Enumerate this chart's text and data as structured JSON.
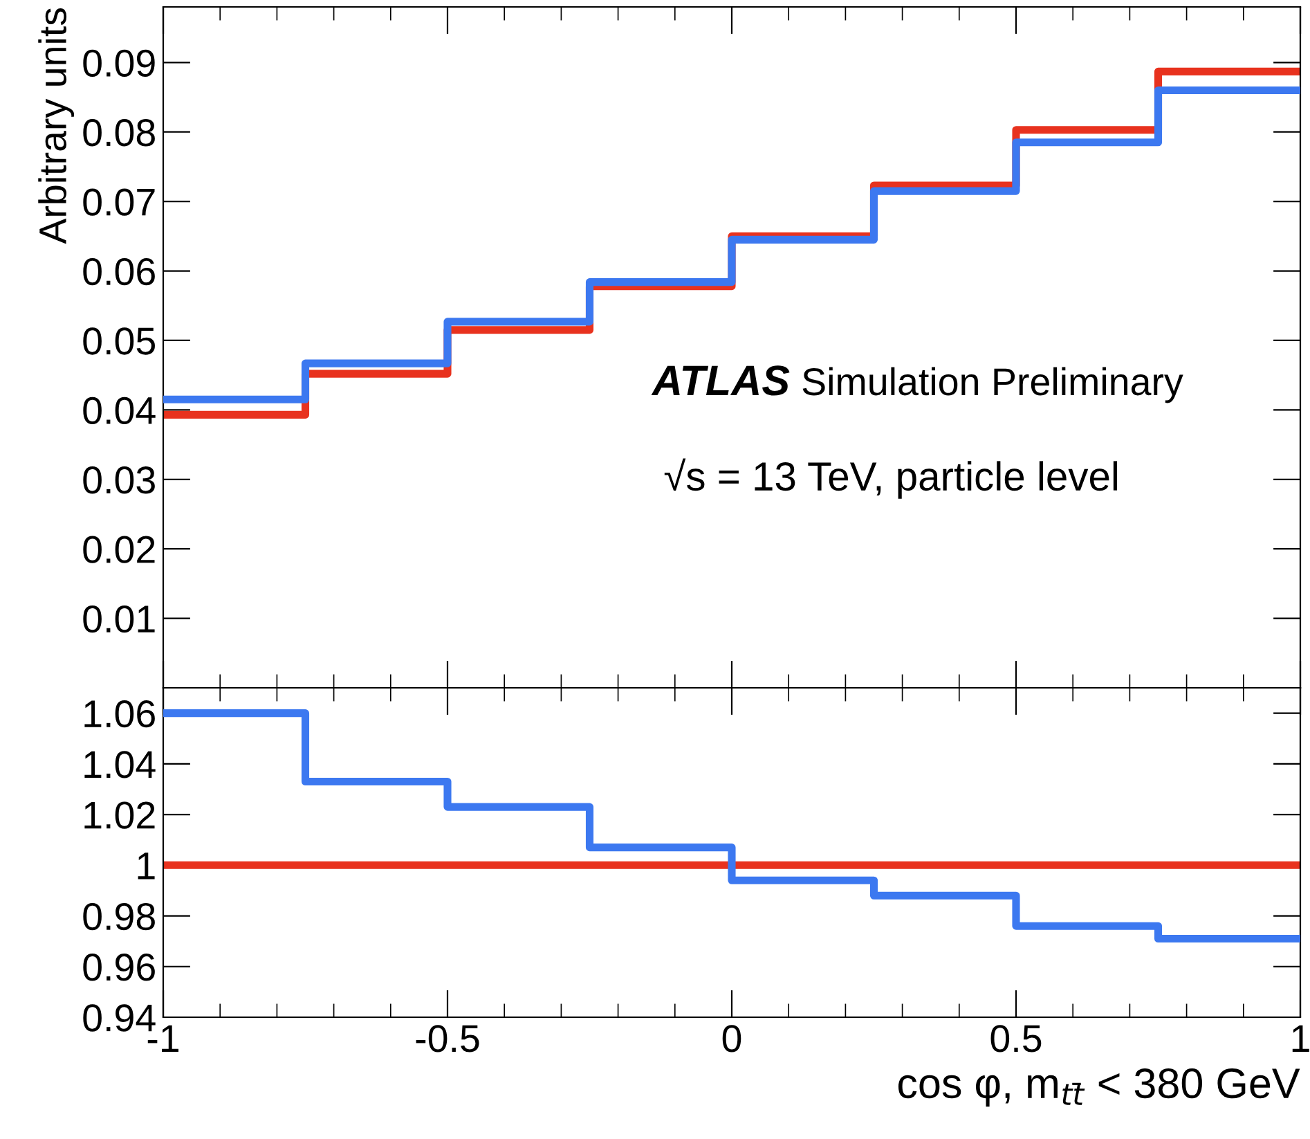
{
  "chart_data": [
    {
      "type": "step",
      "ylabel": "Arbitrary units",
      "x": [
        -1,
        -0.75,
        -0.5,
        -0.25,
        0,
        0.25,
        0.5,
        0.75,
        1
      ],
      "series": [
        {
          "color": "#e8321e",
          "values": [
            0.0393,
            0.0452,
            0.0515,
            0.0578,
            0.065,
            0.0723,
            0.0803,
            0.0887,
            0.0887
          ]
        },
        {
          "color": "#3c78f0",
          "values": [
            0.0415,
            0.0467,
            0.0527,
            0.0584,
            0.0645,
            0.0715,
            0.0785,
            0.086,
            0.086
          ]
        }
      ],
      "xlim": [
        -1,
        1
      ],
      "xticks": [
        {
          "value": -1,
          "label": null
        },
        {
          "value": -0.5,
          "label": null
        },
        {
          "value": 0,
          "label": null
        },
        {
          "value": 0.5,
          "label": null
        },
        {
          "value": 1,
          "label": null
        }
      ],
      "ylim": [
        0,
        0.098
      ],
      "yticks": [
        0.01,
        0.02,
        0.03,
        0.04,
        0.05,
        0.06,
        0.07,
        0.08,
        0.09
      ],
      "tick_labels": "y",
      "annotations": [
        "ATLAS Simulation Preliminary",
        "√s = 13 TeV, particle level"
      ]
    },
    {
      "type": "step",
      "xlabel": "cos φ, m$_{tt̄}$ < 380 GeV",
      "x": [
        -1,
        -0.75,
        -0.5,
        -0.25,
        0,
        0.25,
        0.5,
        0.75,
        1
      ],
      "series": [
        {
          "color": "#e8321e",
          "values": [
            1,
            1,
            1,
            1,
            1,
            1,
            1,
            1,
            1
          ]
        },
        {
          "color": "#3c78f0",
          "values": [
            1.06,
            1.033,
            1.023,
            1.007,
            0.994,
            0.988,
            0.976,
            0.971,
            0.971
          ]
        }
      ],
      "xlim": [
        -1,
        1
      ],
      "xticks": [
        -1,
        -0.5,
        0,
        0.5,
        1
      ],
      "ylim": [
        0.94,
        1.07
      ],
      "yticks": [
        0.94,
        0.96,
        0.98,
        1,
        1.02,
        1.04,
        1.06
      ]
    }
  ]
}
